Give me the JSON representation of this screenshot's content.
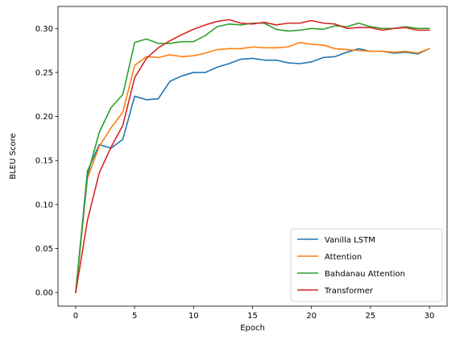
{
  "chart_data": {
    "type": "line",
    "title": "",
    "xlabel": "Epoch",
    "ylabel": "BLEU Score",
    "xlim": [
      -1.5,
      31.5
    ],
    "ylim": [
      -0.0155,
      0.325
    ],
    "xticks": [
      0,
      5,
      10,
      15,
      20,
      25,
      30
    ],
    "yticks": [
      0.0,
      0.05,
      0.1,
      0.15,
      0.2,
      0.25,
      0.3
    ],
    "xtick_labels": [
      "0",
      "5",
      "10",
      "15",
      "20",
      "25",
      "30"
    ],
    "ytick_labels": [
      "0.00",
      "0.05",
      "0.10",
      "0.15",
      "0.20",
      "0.25",
      "0.30"
    ],
    "grid": false,
    "legend_position": "lower-right",
    "x": [
      0,
      1,
      2,
      3,
      4,
      5,
      6,
      7,
      8,
      9,
      10,
      11,
      12,
      13,
      14,
      15,
      16,
      17,
      18,
      19,
      20,
      21,
      22,
      23,
      24,
      25,
      26,
      27,
      28,
      29,
      30
    ],
    "series": [
      {
        "name": "Vanilla LSTM",
        "color": "#1f77b4",
        "values": [
          0.0,
          0.138,
          0.168,
          0.164,
          0.174,
          0.223,
          0.219,
          0.22,
          0.24,
          0.246,
          0.25,
          0.25,
          0.256,
          0.26,
          0.265,
          0.266,
          0.264,
          0.264,
          0.261,
          0.26,
          0.262,
          0.267,
          0.268,
          0.273,
          0.277,
          0.274,
          0.274,
          0.272,
          0.273,
          0.271,
          0.277
        ]
      },
      {
        "name": "Attention",
        "color": "#ff7f0e",
        "values": [
          0.0,
          0.13,
          0.166,
          0.187,
          0.205,
          0.258,
          0.268,
          0.267,
          0.27,
          0.268,
          0.269,
          0.272,
          0.276,
          0.277,
          0.277,
          0.279,
          0.278,
          0.278,
          0.279,
          0.284,
          0.282,
          0.281,
          0.277,
          0.276,
          0.275,
          0.274,
          0.274,
          0.273,
          0.274,
          0.272,
          0.277
        ]
      },
      {
        "name": "Bahdanau Attention",
        "color": "#2ca02c",
        "values": [
          0.0,
          0.133,
          0.182,
          0.21,
          0.225,
          0.284,
          0.288,
          0.283,
          0.283,
          0.285,
          0.285,
          0.292,
          0.302,
          0.305,
          0.304,
          0.306,
          0.306,
          0.299,
          0.297,
          0.298,
          0.3,
          0.299,
          0.303,
          0.302,
          0.306,
          0.302,
          0.3,
          0.3,
          0.302,
          0.3,
          0.3
        ]
      },
      {
        "name": "Transformer",
        "color": "#d62728",
        "values": [
          0.0,
          0.082,
          0.136,
          0.165,
          0.19,
          0.244,
          0.266,
          0.278,
          0.286,
          0.293,
          0.299,
          0.304,
          0.308,
          0.31,
          0.306,
          0.305,
          0.307,
          0.304,
          0.306,
          0.306,
          0.309,
          0.306,
          0.305,
          0.3,
          0.301,
          0.301,
          0.298,
          0.3,
          0.301,
          0.298,
          0.298
        ]
      }
    ]
  }
}
